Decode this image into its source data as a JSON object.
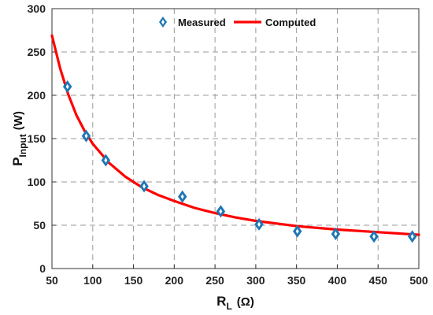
{
  "chart_data": {
    "type": "line",
    "xlabel": {
      "main": "R",
      "sub": "L",
      "unit": "(Ω)"
    },
    "ylabel": {
      "main": "P",
      "sub": "Input",
      "unit": "(W)"
    },
    "xlim": [
      50,
      500
    ],
    "ylim": [
      0,
      300
    ],
    "xticks": [
      50,
      100,
      150,
      200,
      250,
      300,
      350,
      400,
      450,
      500
    ],
    "yticks": [
      0,
      50,
      100,
      150,
      200,
      250,
      300
    ],
    "grid": true,
    "legend_position": "top",
    "series": [
      {
        "name": "Measured",
        "kind": "scatter",
        "marker": "diamond",
        "color": "#1f77b4",
        "x": [
          69,
          92,
          116,
          163,
          210,
          257,
          304,
          351,
          398,
          445,
          492
        ],
        "y": [
          210,
          153,
          125,
          95,
          83,
          66,
          51,
          43,
          40,
          37,
          37
        ]
      },
      {
        "name": "Computed",
        "kind": "line",
        "color": "#ff0000",
        "x": [
          50,
          60,
          70,
          80,
          90,
          100,
          120,
          140,
          160,
          180,
          200,
          225,
          250,
          275,
          300,
          350,
          400,
          450,
          500
        ],
        "y": [
          269,
          231,
          201,
          177,
          159,
          144,
          122,
          106,
          94,
          85,
          78,
          70,
          64,
          59,
          55,
          49,
          45,
          42,
          39
        ]
      }
    ]
  }
}
